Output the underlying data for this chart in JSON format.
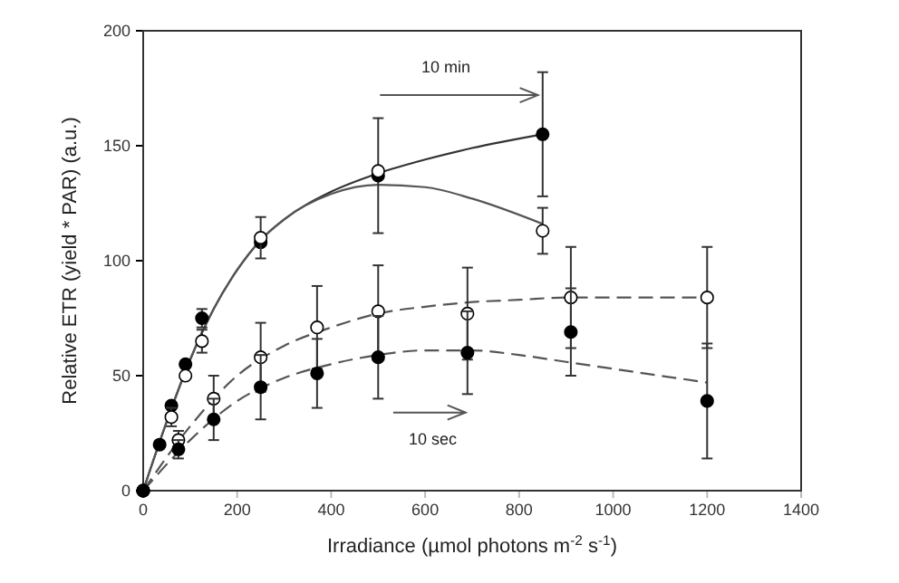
{
  "chart_data": {
    "type": "scatter",
    "xlabel": "Irradiance (µmol photons m$^{-2}$ s$^{-1}$)",
    "ylabel": "Relative ETR (yield * PAR) (a.u.)",
    "xlim": [
      0,
      1400
    ],
    "xticks": [
      0,
      200,
      400,
      600,
      800,
      1000,
      1200,
      1400
    ],
    "ylim": [
      0,
      200
    ],
    "yticks": [
      0,
      50,
      100,
      150,
      200
    ],
    "marker": "circle",
    "annotations": [
      "10 min",
      "10 sec"
    ],
    "series": [
      {
        "type": "line",
        "marker": "none",
        "line_style": "solid",
        "color": "#333333",
        "x": [
          0,
          50,
          100,
          150,
          200,
          250,
          300,
          400,
          500,
          600,
          700,
          850
        ],
        "values": [
          0,
          30,
          57,
          79,
          96,
          109,
          118,
          130,
          138,
          144,
          149,
          155
        ]
      },
      {
        "type": "line",
        "marker": "none",
        "line_style": "solid",
        "color": "#555555",
        "x": [
          0,
          50,
          100,
          150,
          200,
          250,
          300,
          400,
          500,
          600,
          700,
          850
        ],
        "values": [
          0,
          30,
          57,
          79,
          96,
          109,
          118,
          129,
          133,
          132,
          127,
          116
        ]
      },
      {
        "type": "line",
        "marker": "none",
        "line_style": "dashed",
        "color": "#555555",
        "x": [
          0,
          100,
          200,
          300,
          400,
          500,
          600,
          700,
          800,
          900,
          1000,
          1200
        ],
        "values": [
          0,
          28,
          50,
          63,
          71,
          77,
          80,
          82,
          83,
          84,
          84,
          84
        ]
      },
      {
        "type": "line",
        "marker": "none",
        "line_style": "dashed",
        "color": "#555555",
        "x": [
          0,
          100,
          200,
          300,
          400,
          500,
          600,
          700,
          800,
          900,
          1000,
          1200
        ],
        "values": [
          0,
          22,
          39,
          49,
          55,
          59,
          61,
          61,
          59,
          56,
          53,
          47
        ]
      },
      {
        "color": "#000000",
        "x": [
          0,
          35,
          60,
          90,
          125,
          250,
          500,
          850
        ],
        "values": [
          0,
          20,
          37,
          55,
          75,
          108,
          137,
          155
        ],
        "errors": [
          null,
          null,
          null,
          null,
          4,
          null,
          25,
          27
        ]
      },
      {
        "color": "#ffffff",
        "x": [
          0,
          60,
          90,
          125,
          250,
          500,
          850
        ],
        "values": [
          0,
          32,
          50,
          65,
          110,
          139,
          113
        ],
        "errors": [
          null,
          4,
          null,
          5,
          9,
          null,
          10
        ]
      },
      {
        "color": "#ffffff",
        "x": [
          0,
          75,
          150,
          250,
          370,
          500,
          690,
          910,
          1200
        ],
        "values": [
          0,
          22,
          40,
          58,
          71,
          78,
          77,
          84,
          84
        ],
        "errors": [
          null,
          4,
          10,
          15,
          18,
          20,
          20,
          22,
          22
        ]
      },
      {
        "color": "#000000",
        "x": [
          0,
          75,
          150,
          250,
          370,
          500,
          690,
          910,
          1200
        ],
        "values": [
          0,
          18,
          31,
          45,
          51,
          58,
          60,
          69,
          39
        ],
        "errors": [
          null,
          4,
          9,
          14,
          15,
          18,
          18,
          19,
          25
        ]
      }
    ]
  }
}
